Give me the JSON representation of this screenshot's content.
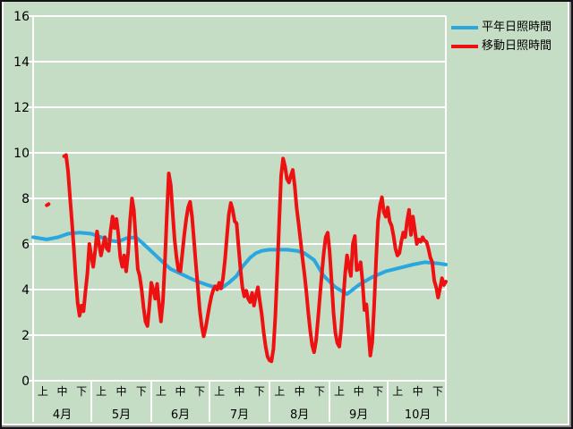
{
  "colors": {
    "background": "#c5ddc5",
    "grid": "#ffffff",
    "text": "#000000",
    "frame_outer": "#141414",
    "frame_highlight": "#ffffff",
    "frame_shadow": "#8a8a8a",
    "normal_line": "#2aa7df",
    "moving_line": "#ee1111"
  },
  "legend": {
    "items": [
      {
        "label": "平年日照時間",
        "color": "#2aa7df"
      },
      {
        "label": "移動日照時間",
        "color": "#ee1111"
      }
    ]
  },
  "chart_data": {
    "type": "line",
    "title": "",
    "xlabel": "",
    "ylabel": "",
    "legend_position": "top-right",
    "grid": {
      "horizontal": true,
      "vertical": false,
      "color": "#ffffff"
    },
    "y_axis": {
      "min": 0,
      "max": 16,
      "tick_step": 2,
      "tick_labels": [
        "0",
        "2",
        "4",
        "6",
        "8",
        "10",
        "12",
        "14",
        "16"
      ]
    },
    "x_axis": {
      "period_labels": [
        "上",
        "中",
        "下"
      ],
      "months": [
        {
          "label": "4月",
          "days": 30
        },
        {
          "label": "5月",
          "days": 31
        },
        {
          "label": "6月",
          "days": 30
        },
        {
          "label": "7月",
          "days": 31
        },
        {
          "label": "8月",
          "days": 31
        },
        {
          "label": "9月",
          "days": 30
        },
        {
          "label": "10月",
          "days": 31
        }
      ],
      "total_days": 214
    },
    "point_format": "[day_index_from_april_1, sunshine_hours]",
    "series": [
      {
        "name": "平年日照時間",
        "color": "#2aa7df",
        "stroke_width": 4,
        "segments": [
          [
            [
              0,
              6.3
            ],
            [
              7,
              6.2
            ],
            [
              13,
              6.3
            ],
            [
              18,
              6.45
            ],
            [
              24,
              6.5
            ],
            [
              30,
              6.45
            ],
            [
              35,
              6.3
            ],
            [
              40,
              6.15
            ],
            [
              44,
              6.1
            ],
            [
              48,
              6.25
            ],
            [
              53,
              6.3
            ],
            [
              57,
              6.0
            ],
            [
              62,
              5.6
            ],
            [
              67,
              5.2
            ],
            [
              71,
              4.9
            ],
            [
              76,
              4.7
            ],
            [
              81,
              4.5
            ],
            [
              85,
              4.35
            ],
            [
              90,
              4.2
            ],
            [
              94,
              4.1
            ],
            [
              97,
              4.05
            ],
            [
              101,
              4.3
            ],
            [
              105,
              4.6
            ],
            [
              108,
              5.0
            ],
            [
              112,
              5.4
            ],
            [
              115,
              5.6
            ],
            [
              118,
              5.7
            ],
            [
              122,
              5.75
            ],
            [
              131,
              5.75
            ],
            [
              136,
              5.7
            ],
            [
              140,
              5.6
            ],
            [
              145,
              5.3
            ],
            [
              150,
              4.6
            ],
            [
              156,
              4.1
            ],
            [
              162,
              3.8
            ],
            [
              168,
              4.2
            ],
            [
              175,
              4.55
            ],
            [
              182,
              4.8
            ],
            [
              189,
              4.95
            ],
            [
              196,
              5.1
            ],
            [
              202,
              5.2
            ],
            [
              209,
              5.15
            ],
            [
              213,
              5.1
            ]
          ]
        ]
      },
      {
        "name": "移動日照時間",
        "color": "#ee1111",
        "stroke_width": 4,
        "segments": [
          [
            [
              7,
              7.7
            ],
            [
              8,
              7.75
            ]
          ],
          [
            [
              16,
              9.85
            ],
            [
              17,
              9.9
            ],
            [
              18,
              9.2
            ],
            [
              19,
              8.1
            ],
            [
              20,
              7.0
            ],
            [
              21,
              5.8
            ],
            [
              22,
              4.5
            ],
            [
              23,
              3.4
            ],
            [
              24,
              2.85
            ],
            [
              25,
              3.3
            ],
            [
              26,
              3.05
            ],
            [
              27,
              3.9
            ],
            [
              28,
              4.7
            ],
            [
              29,
              6.0
            ],
            [
              30,
              5.5
            ],
            [
              31,
              5.0
            ],
            [
              32,
              5.7
            ],
            [
              33,
              6.55
            ],
            [
              34,
              6.0
            ],
            [
              35,
              5.5
            ],
            [
              36,
              5.9
            ],
            [
              37,
              6.3
            ],
            [
              38,
              5.8
            ],
            [
              39,
              5.7
            ],
            [
              40,
              6.6
            ],
            [
              41,
              7.2
            ],
            [
              42,
              6.7
            ],
            [
              43,
              7.1
            ],
            [
              44,
              6.4
            ],
            [
              45,
              5.4
            ],
            [
              46,
              5.0
            ],
            [
              47,
              5.5
            ],
            [
              48,
              4.8
            ],
            [
              49,
              5.6
            ],
            [
              50,
              7.0
            ],
            [
              51,
              8.0
            ],
            [
              52,
              7.5
            ],
            [
              53,
              6.2
            ],
            [
              54,
              4.9
            ],
            [
              55,
              4.6
            ],
            [
              56,
              4.0
            ],
            [
              57,
              3.2
            ],
            [
              58,
              2.6
            ],
            [
              59,
              2.4
            ],
            [
              60,
              3.3
            ],
            [
              61,
              4.3
            ],
            [
              62,
              4.0
            ],
            [
              63,
              3.6
            ],
            [
              64,
              4.25
            ],
            [
              65,
              3.3
            ],
            [
              66,
              2.6
            ],
            [
              67,
              3.5
            ],
            [
              68,
              5.2
            ],
            [
              69,
              7.2
            ],
            [
              70,
              9.1
            ],
            [
              71,
              8.6
            ],
            [
              72,
              7.4
            ],
            [
              73,
              6.2
            ],
            [
              74,
              5.4
            ],
            [
              75,
              4.85
            ],
            [
              76,
              4.8
            ],
            [
              77,
              5.6
            ],
            [
              78,
              6.4
            ],
            [
              79,
              7.1
            ],
            [
              80,
              7.6
            ],
            [
              81,
              7.85
            ],
            [
              82,
              7.2
            ],
            [
              83,
              6.2
            ],
            [
              84,
              5.1
            ],
            [
              85,
              4.1
            ],
            [
              86,
              3.1
            ],
            [
              87,
              2.4
            ],
            [
              88,
              1.95
            ],
            [
              89,
              2.3
            ],
            [
              90,
              2.8
            ],
            [
              91,
              3.3
            ],
            [
              92,
              3.7
            ],
            [
              93,
              4.0
            ],
            [
              94,
              4.15
            ],
            [
              95,
              4.0
            ],
            [
              96,
              4.3
            ],
            [
              97,
              4.05
            ],
            [
              98,
              4.5
            ],
            [
              99,
              5.3
            ],
            [
              100,
              6.3
            ],
            [
              101,
              7.3
            ],
            [
              102,
              7.8
            ],
            [
              103,
              7.5
            ],
            [
              104,
              7.0
            ],
            [
              105,
              6.9
            ],
            [
              106,
              5.9
            ],
            [
              107,
              4.9
            ],
            [
              108,
              4.1
            ],
            [
              109,
              3.7
            ],
            [
              110,
              3.95
            ],
            [
              111,
              3.6
            ],
            [
              112,
              3.45
            ],
            [
              113,
              3.85
            ],
            [
              114,
              3.3
            ],
            [
              115,
              3.75
            ],
            [
              116,
              4.1
            ],
            [
              117,
              3.5
            ],
            [
              118,
              2.9
            ],
            [
              119,
              2.1
            ],
            [
              120,
              1.5
            ],
            [
              121,
              1.05
            ],
            [
              122,
              0.9
            ],
            [
              123,
              0.85
            ],
            [
              124,
              1.4
            ],
            [
              125,
              2.8
            ],
            [
              126,
              4.8
            ],
            [
              127,
              7.0
            ],
            [
              128,
              9.0
            ],
            [
              129,
              9.75
            ],
            [
              130,
              9.4
            ],
            [
              131,
              8.85
            ],
            [
              132,
              8.7
            ],
            [
              133,
              9.0
            ],
            [
              134,
              9.25
            ],
            [
              135,
              8.55
            ],
            [
              136,
              7.6
            ],
            [
              137,
              6.9
            ],
            [
              138,
              6.15
            ],
            [
              139,
              5.4
            ],
            [
              140,
              4.7
            ],
            [
              141,
              3.9
            ],
            [
              142,
              3.0
            ],
            [
              143,
              2.2
            ],
            [
              144,
              1.55
            ],
            [
              145,
              1.25
            ],
            [
              146,
              1.75
            ],
            [
              147,
              2.7
            ],
            [
              148,
              3.7
            ],
            [
              149,
              4.7
            ],
            [
              150,
              5.6
            ],
            [
              151,
              6.3
            ],
            [
              152,
              6.5
            ],
            [
              153,
              5.7
            ],
            [
              154,
              4.4
            ],
            [
              155,
              3.0
            ],
            [
              156,
              2.1
            ],
            [
              157,
              1.65
            ],
            [
              158,
              1.5
            ],
            [
              159,
              2.3
            ],
            [
              160,
              3.5
            ],
            [
              161,
              4.7
            ],
            [
              162,
              5.5
            ],
            [
              163,
              5.0
            ],
            [
              164,
              4.6
            ],
            [
              165,
              6.0
            ],
            [
              166,
              6.35
            ],
            [
              167,
              4.85
            ],
            [
              168,
              4.9
            ],
            [
              169,
              5.2
            ],
            [
              170,
              4.35
            ],
            [
              171,
              3.1
            ],
            [
              172,
              3.35
            ],
            [
              173,
              2.2
            ],
            [
              174,
              1.1
            ],
            [
              175,
              1.7
            ],
            [
              176,
              3.3
            ],
            [
              177,
              5.3
            ],
            [
              178,
              7.0
            ],
            [
              179,
              7.7
            ],
            [
              180,
              8.05
            ],
            [
              181,
              7.4
            ],
            [
              182,
              7.2
            ],
            [
              183,
              7.6
            ],
            [
              184,
              7.0
            ],
            [
              185,
              6.8
            ],
            [
              186,
              6.35
            ],
            [
              187,
              5.8
            ],
            [
              188,
              5.5
            ],
            [
              189,
              5.6
            ],
            [
              190,
              6.1
            ],
            [
              191,
              6.5
            ],
            [
              192,
              6.3
            ],
            [
              193,
              7.0
            ],
            [
              194,
              7.5
            ],
            [
              195,
              6.4
            ],
            [
              196,
              7.2
            ],
            [
              197,
              6.6
            ],
            [
              198,
              6.0
            ],
            [
              199,
              6.2
            ],
            [
              200,
              6.1
            ],
            [
              201,
              6.3
            ],
            [
              202,
              6.15
            ],
            [
              203,
              6.1
            ],
            [
              204,
              5.8
            ],
            [
              205,
              5.4
            ],
            [
              206,
              5.2
            ],
            [
              207,
              4.4
            ],
            [
              208,
              4.1
            ],
            [
              209,
              3.65
            ],
            [
              210,
              4.05
            ],
            [
              211,
              4.5
            ],
            [
              212,
              4.2
            ],
            [
              213,
              4.35
            ]
          ]
        ]
      }
    ]
  }
}
